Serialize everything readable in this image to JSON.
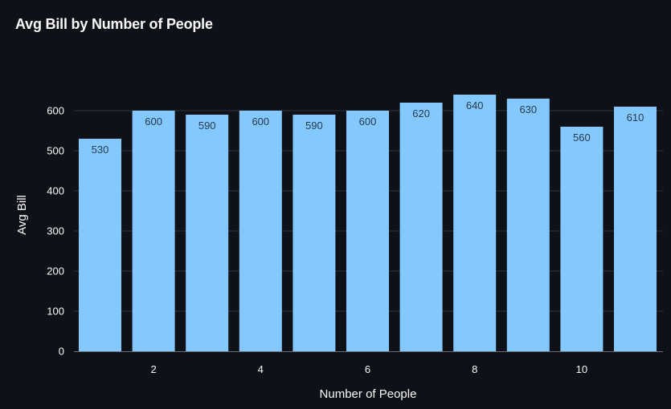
{
  "chart_data": {
    "type": "bar",
    "title": "Avg Bill by Number of People",
    "xlabel": "Number of People",
    "ylabel": "Avg Bill",
    "categories": [
      1,
      2,
      3,
      4,
      5,
      6,
      7,
      8,
      9,
      10,
      11
    ],
    "values": [
      530,
      600,
      590,
      600,
      590,
      600,
      620,
      640,
      630,
      560,
      610
    ],
    "x_ticks": [
      2,
      4,
      6,
      8,
      10
    ],
    "y_ticks": [
      0,
      100,
      200,
      300,
      400,
      500,
      600
    ],
    "ylim": [
      0,
      680
    ],
    "grid": true,
    "bar_color": "#83c9ff",
    "background": "#0e1117",
    "grid_color": "#31333f"
  }
}
